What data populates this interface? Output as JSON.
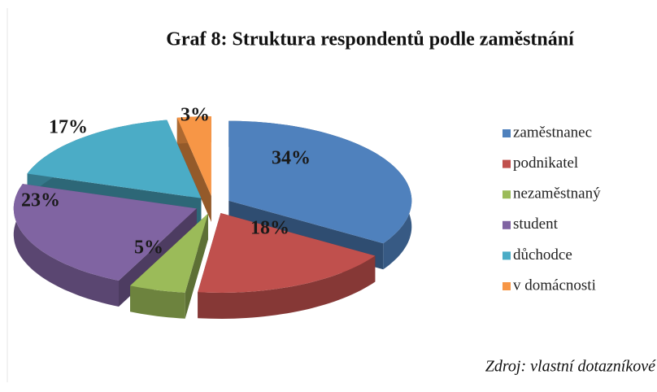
{
  "chart_data": {
    "type": "pie",
    "title": "Graf 8: Struktura respondentů podle zaměstnání",
    "categories": [
      "zaměstnanec",
      "podnikatel",
      "nezaměstnaný",
      "student",
      "důchodce",
      "v domácnosti"
    ],
    "values": [
      34,
      18,
      5,
      23,
      17,
      3
    ],
    "value_labels": [
      "34%",
      "18%",
      "5%",
      "23%",
      "17%",
      "3%"
    ],
    "colors": [
      "#4f81bd",
      "#c0504d",
      "#9bbb59",
      "#8064a2",
      "#4bacc6",
      "#f79646"
    ],
    "legend": "right",
    "source": "Zdroj: vlastní dotazníkové"
  }
}
